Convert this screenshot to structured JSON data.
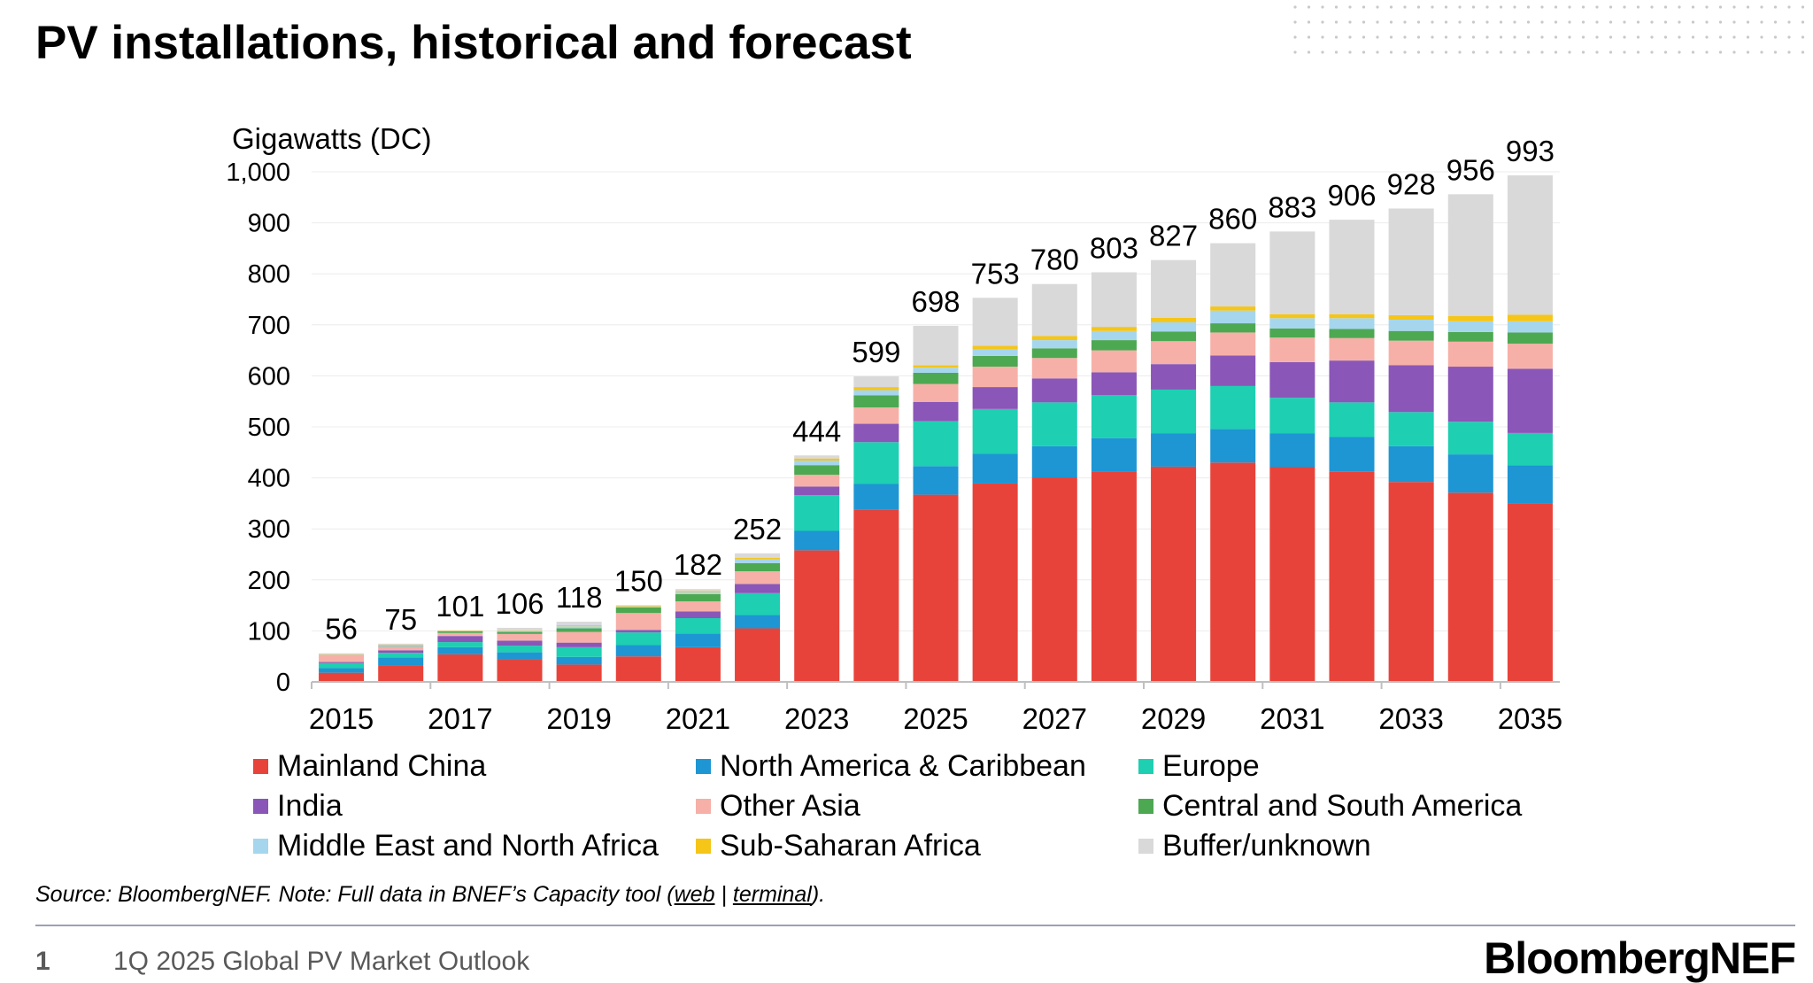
{
  "title": "PV installations, historical and forecast",
  "source": {
    "prefix": "Source: BloombergNEF. Note: Full data in BNEF’s Capacity tool (",
    "link_web": "web",
    "separator": " | ",
    "link_terminal": "terminal",
    "suffix": ")."
  },
  "footer": {
    "page_number": "1",
    "deck_title": "1Q 2025 Global PV Market Outlook",
    "brand": "BloombergNEF"
  },
  "chart_data": {
    "type": "bar",
    "stacked": true,
    "title": "",
    "ylabel": "Gigawatts (DC)",
    "xlabel": "",
    "ylim": [
      0,
      1000
    ],
    "yticks": [
      "0",
      "100",
      "200",
      "300",
      "400",
      "500",
      "600",
      "700",
      "800",
      "900",
      "1,000"
    ],
    "ytick_values": [
      0,
      100,
      200,
      300,
      400,
      500,
      600,
      700,
      800,
      900,
      1000
    ],
    "grid": true,
    "legend_position": "bottom",
    "categories": [
      "2015",
      "2016",
      "2017",
      "2018",
      "2019",
      "2020",
      "2021",
      "2022",
      "2023",
      "2024",
      "2025",
      "2026",
      "2027",
      "2028",
      "2029",
      "2030",
      "2031",
      "2032",
      "2033",
      "2034",
      "2035"
    ],
    "xtick_labels": [
      "2015",
      "2017",
      "2019",
      "2021",
      "2023",
      "2025",
      "2027",
      "2029",
      "2031",
      "2033",
      "2035"
    ],
    "totals": [
      56,
      75,
      101,
      106,
      118,
      150,
      182,
      252,
      444,
      599,
      698,
      753,
      780,
      803,
      827,
      860,
      883,
      906,
      928,
      956,
      993
    ],
    "series": [
      {
        "name": "Mainland China",
        "color": "#e8433a",
        "values": [
          18,
          32,
          54,
          45,
          34,
          50,
          68,
          105,
          258,
          337,
          367,
          389,
          401,
          413,
          422,
          430,
          421,
          412,
          392,
          371,
          350
        ]
      },
      {
        "name": "North America & Caribbean",
        "color": "#1d96d3",
        "values": [
          9,
          16,
          14,
          13,
          15,
          22,
          27,
          26,
          38,
          51,
          56,
          58,
          61,
          65,
          65,
          66,
          66,
          68,
          70,
          75,
          75
        ]
      },
      {
        "name": "Europe",
        "color": "#1ecfb2",
        "values": [
          10,
          9,
          10,
          13,
          19,
          25,
          30,
          43,
          70,
          82,
          88,
          88,
          86,
          84,
          86,
          84,
          70,
          68,
          67,
          64,
          63
        ]
      },
      {
        "name": "India",
        "color": "#8a56b7",
        "values": [
          2,
          5,
          12,
          10,
          9,
          5,
          13,
          18,
          17,
          36,
          38,
          43,
          47,
          45,
          50,
          60,
          70,
          82,
          92,
          108,
          126
        ]
      },
      {
        "name": "Other Asia",
        "color": "#f6b0a7",
        "values": [
          14,
          7,
          6,
          13,
          21,
          33,
          20,
          25,
          23,
          32,
          35,
          40,
          40,
          43,
          45,
          45,
          48,
          44,
          48,
          49,
          49
        ]
      },
      {
        "name": "Central and South America",
        "color": "#4da852",
        "values": [
          0,
          1,
          3,
          4,
          7,
          11,
          14,
          16,
          19,
          24,
          22,
          21,
          19,
          20,
          19,
          18,
          18,
          18,
          19,
          19,
          22
        ]
      },
      {
        "name": "Middle East and North Africa",
        "color": "#a5d6ee",
        "values": [
          1,
          2,
          1,
          2,
          4,
          2,
          4,
          7,
          9,
          10,
          10,
          13,
          16,
          18,
          18,
          25,
          20,
          21,
          22,
          21,
          22
        ]
      },
      {
        "name": "Sub-Saharan Africa",
        "color": "#f5c518",
        "values": [
          1,
          1,
          1,
          1,
          2,
          2,
          2,
          3,
          4,
          6,
          5,
          7,
          8,
          8,
          9,
          8,
          8,
          8,
          9,
          10,
          13
        ]
      },
      {
        "name": "Buffer/unknown",
        "color": "#d9d9d9",
        "values": [
          1,
          2,
          0,
          5,
          7,
          0,
          4,
          9,
          6,
          21,
          77,
          94,
          102,
          107,
          113,
          124,
          162,
          185,
          209,
          239,
          273
        ]
      }
    ]
  }
}
